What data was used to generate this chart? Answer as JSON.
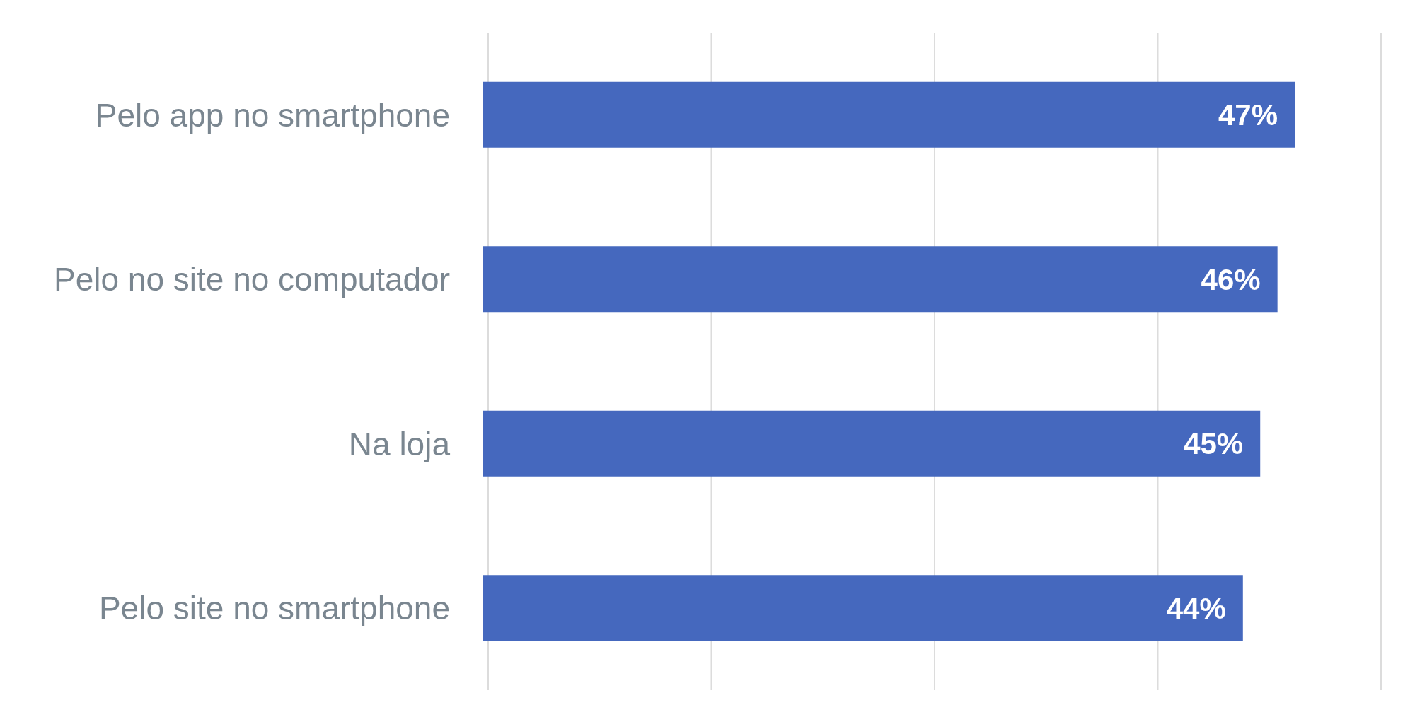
{
  "chart_data": {
    "type": "bar",
    "orientation": "horizontal",
    "categories": [
      "Pelo app no smartphone",
      "Pelo no site no computador",
      "Na loja",
      "Pelo site no smartphone"
    ],
    "values": [
      47,
      46,
      45,
      44
    ],
    "value_labels": [
      "47%",
      "46%",
      "45%",
      "44%"
    ],
    "color": "#4568be",
    "grid": "x",
    "tick_labels": "y"
  }
}
